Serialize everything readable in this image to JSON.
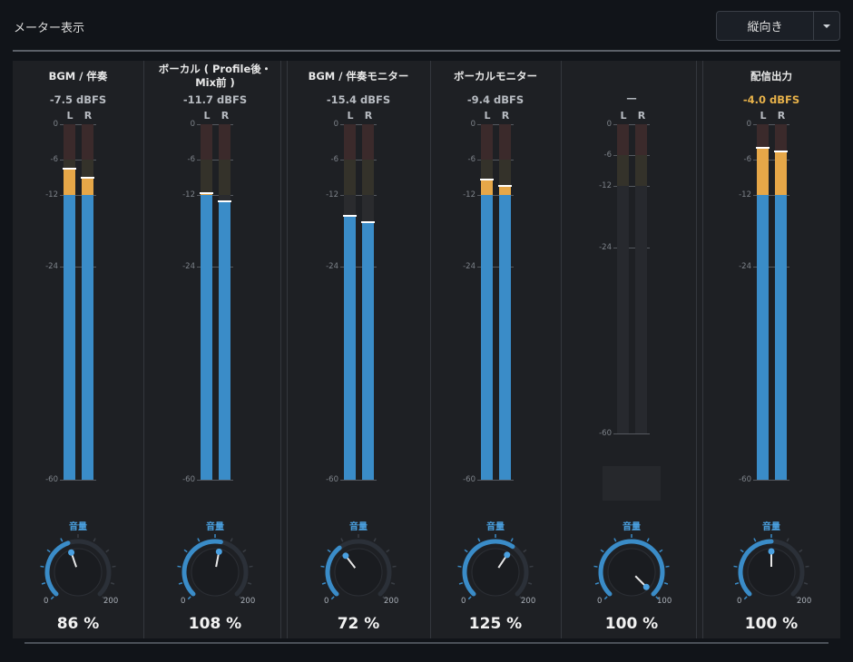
{
  "header": {
    "title": "メーター表示"
  },
  "orientation_dropdown": {
    "value": "縦向き"
  },
  "colors": {
    "blue": "#3a8cc8",
    "orange": "#e6a748",
    "warn_text": "#e8b24a"
  },
  "scale_ticks": [
    "0",
    "-6",
    "-12",
    "-24",
    "-60"
  ],
  "channels": [
    {
      "name": "BGM / 伴奏",
      "name2": "",
      "db": "-7.5 dBFS",
      "warn": false,
      "L": {
        "level_db": -7.5,
        "peak_db": -7.5
      },
      "R": {
        "level_db": -9.0,
        "peak_db": -9.0
      },
      "vol_label": "音量",
      "knob_min": "0",
      "knob_max": "200",
      "volume_pct": 86,
      "volume_text": "86 %"
    },
    {
      "name": "ボーカル ( Profile後・",
      "name2": "Mix前 )",
      "db": "-11.7 dBFS",
      "warn": false,
      "L": {
        "level_db": -11.7,
        "peak_db": -11.7
      },
      "R": {
        "level_db": -13.0,
        "peak_db": -13.0
      },
      "vol_label": "音量",
      "knob_min": "0",
      "knob_max": "200",
      "volume_pct": 108,
      "volume_text": "108 %"
    },
    {
      "name": "BGM / 伴奏モニター",
      "name2": "",
      "db": "-15.4 dBFS",
      "warn": false,
      "L": {
        "level_db": -15.4,
        "peak_db": -15.4
      },
      "R": {
        "level_db": -16.5,
        "peak_db": -16.5
      },
      "vol_label": "音量",
      "knob_min": "0",
      "knob_max": "200",
      "volume_pct": 72,
      "volume_text": "72 %"
    },
    {
      "name": "ボーカルモニター",
      "name2": "",
      "db": "-9.4 dBFS",
      "warn": false,
      "L": {
        "level_db": -9.4,
        "peak_db": -9.4
      },
      "R": {
        "level_db": -10.4,
        "peak_db": -10.4
      },
      "vol_label": "音量",
      "knob_min": "0",
      "knob_max": "200",
      "volume_pct": 125,
      "volume_text": "125 %"
    },
    {
      "name": "—",
      "name2": "",
      "db": "",
      "warn": false,
      "empty": true,
      "vol_label": "音量",
      "knob_min": "0",
      "knob_max": "100",
      "volume_pct": 100,
      "volume_text": "100 %"
    },
    {
      "name": "配信出力",
      "name2": "",
      "db": "-4.0 dBFS",
      "warn": true,
      "L": {
        "level_db": -4.0,
        "peak_db": -4.0
      },
      "R": {
        "level_db": -4.6,
        "peak_db": -4.6
      },
      "vol_label": "音量",
      "knob_min": "0",
      "knob_max": "200",
      "volume_pct": 100,
      "volume_text": "100 %"
    }
  ],
  "lr_labels": {
    "left": "L",
    "right": "R"
  }
}
